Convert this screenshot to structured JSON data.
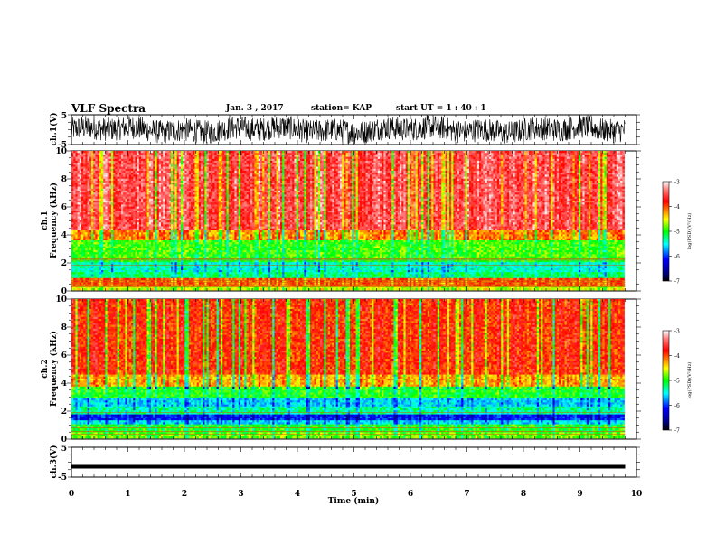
{
  "header": {
    "title": "VLF Spectra",
    "date": "Jan. 3 , 2017",
    "station": "station= KAP",
    "start": "start UT =  1 : 40 : 1"
  },
  "chart_data": [
    {
      "type": "line",
      "panel": "ch1-waveform",
      "ylabel": "ch.1(V)",
      "yticks": [
        "5",
        "-5"
      ],
      "ylim": [
        -5,
        5
      ],
      "xlim": [
        0,
        10
      ],
      "line_color": "#000000",
      "data_end_min": 9.8,
      "description_values": {
        "center_v": 0,
        "approx_amplitude_v": 4
      }
    },
    {
      "type": "heatmap",
      "panel": "ch1-spectrogram",
      "ylabel": "ch.1\nFrequency (kHz)",
      "ylabel_line1": "ch.1",
      "ylabel_line2": "Frequency (kHz)",
      "yticks": [
        "0",
        "2",
        "4",
        "6",
        "8",
        "10"
      ],
      "ylim": [
        0,
        10
      ],
      "xlim": [
        0,
        10
      ],
      "data_end_min": 9.8,
      "bands": [
        {
          "from_khz": 0.0,
          "to_khz": 0.4,
          "level": -4.6
        },
        {
          "from_khz": 0.4,
          "to_khz": 0.9,
          "level": -4.0
        },
        {
          "from_khz": 0.9,
          "to_khz": 1.3,
          "level": -5.2
        },
        {
          "from_khz": 1.3,
          "to_khz": 2.0,
          "level": -5.4
        },
        {
          "from_khz": 2.0,
          "to_khz": 2.4,
          "level": -5.0
        },
        {
          "from_khz": 2.4,
          "to_khz": 3.6,
          "level": -4.9
        },
        {
          "from_khz": 3.6,
          "to_khz": 4.3,
          "level": -4.2
        },
        {
          "from_khz": 4.3,
          "to_khz": 10.0,
          "level": -3.55
        }
      ],
      "lines_khz": [
        0.3,
        0.45,
        0.6,
        0.75,
        1.85,
        2.2,
        2.3
      ],
      "colorbar": {
        "label": "log(PSD)(V²/Hz)",
        "ticks": [
          "-3",
          "-4",
          "-5",
          "-6",
          "-7"
        ],
        "range": [
          -7,
          -3
        ]
      }
    },
    {
      "type": "heatmap",
      "panel": "ch2-spectrogram",
      "ylabel": "ch.2\nFrequency (kHz)",
      "ylabel_line1": "ch.2",
      "ylabel_line2": "Frequency (kHz)",
      "yticks": [
        "0",
        "2",
        "4",
        "6",
        "8",
        "10"
      ],
      "ylim": [
        0,
        10
      ],
      "xlim": [
        0,
        10
      ],
      "data_end_min": 9.8,
      "bands": [
        {
          "from_khz": 0.0,
          "to_khz": 0.5,
          "level": -4.8
        },
        {
          "from_khz": 0.5,
          "to_khz": 1.0,
          "level": -5.0
        },
        {
          "from_khz": 1.0,
          "to_khz": 1.3,
          "level": -5.6
        },
        {
          "from_khz": 1.3,
          "to_khz": 1.7,
          "level": -6.1
        },
        {
          "from_khz": 1.7,
          "to_khz": 2.3,
          "level": -5.3
        },
        {
          "from_khz": 2.3,
          "to_khz": 2.9,
          "level": -5.6
        },
        {
          "from_khz": 2.9,
          "to_khz": 3.8,
          "level": -5.0
        },
        {
          "from_khz": 3.8,
          "to_khz": 4.6,
          "level": -4.3
        },
        {
          "from_khz": 4.6,
          "to_khz": 10.0,
          "level": -3.9
        }
      ],
      "lines_khz": [
        0.35,
        0.55,
        0.8,
        1.9
      ],
      "colorbar": {
        "label": "log(PSD)(V²/Hz)",
        "ticks": [
          "-3",
          "-4",
          "-5",
          "-6",
          "-7"
        ],
        "range": [
          -7,
          -3
        ]
      }
    },
    {
      "type": "line",
      "panel": "ch3-waveform",
      "ylabel": "ch.3(V)",
      "yticks": [
        "5",
        "-5"
      ],
      "ylim": [
        -5,
        5
      ],
      "xlim": [
        0,
        10
      ],
      "data_end_min": 9.8,
      "values": {
        "constant_v": -1.5
      },
      "line_color": "#000000",
      "xlabel": "Time (min)",
      "xticks": [
        "0",
        "1",
        "2",
        "3",
        "4",
        "5",
        "6",
        "7",
        "8",
        "9",
        "10"
      ]
    }
  ]
}
